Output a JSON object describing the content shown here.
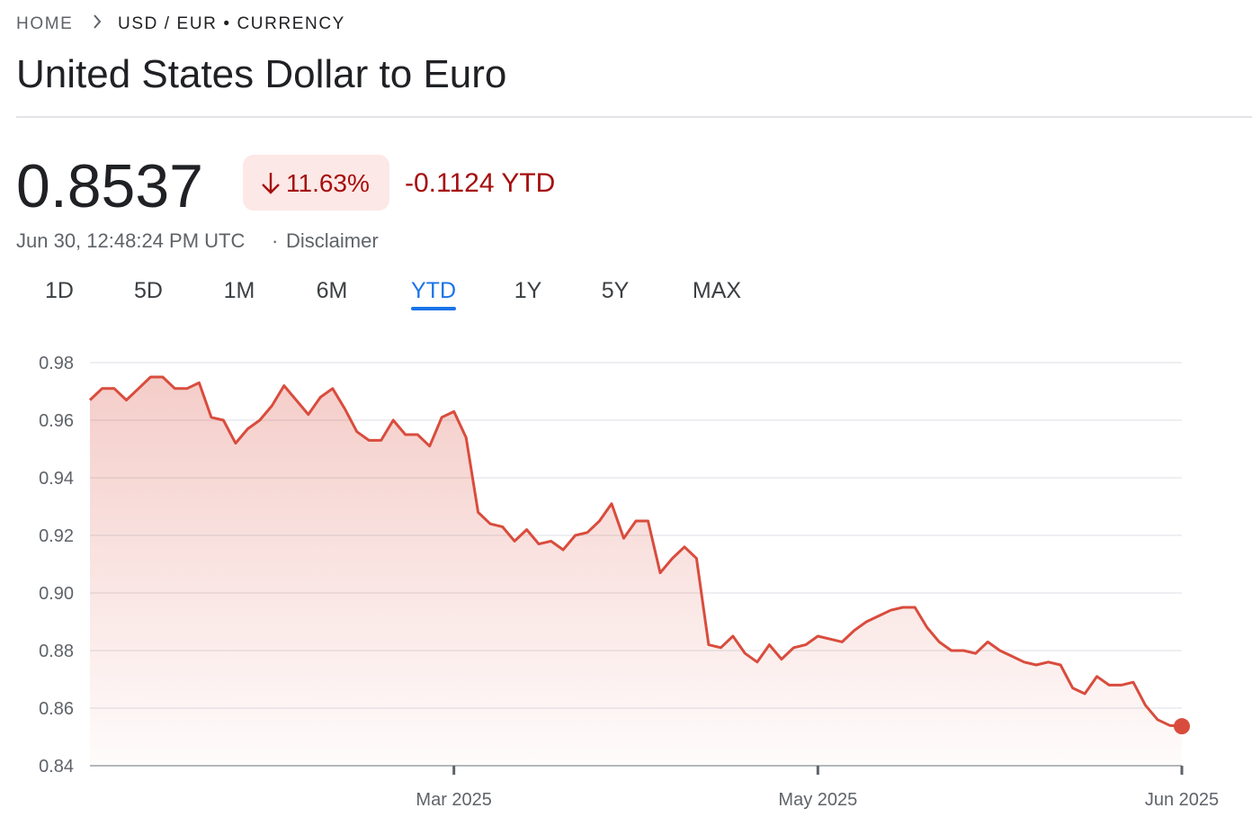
{
  "breadcrumb": {
    "home": "HOME",
    "current": "USD / EUR • CURRENCY"
  },
  "title": "United States Dollar to Euro",
  "quote": {
    "price": "0.8537",
    "change_percent": "11.63%",
    "change_absolute": "-0.1124 YTD",
    "timestamp": "Jun 30, 12:48:24 PM UTC",
    "separator": "·",
    "disclaimer": "Disclaimer"
  },
  "tabs": {
    "items": [
      "1D",
      "5D",
      "1M",
      "6M",
      "YTD",
      "1Y",
      "5Y",
      "MAX"
    ],
    "selected_index": 4
  },
  "chart_data": {
    "type": "area",
    "color": "#d94c3d",
    "grid": true,
    "categories": [
      null,
      null,
      null,
      null,
      null,
      null,
      null,
      null,
      null,
      null,
      null,
      null,
      null,
      null,
      null,
      null,
      null,
      null,
      null,
      null,
      null,
      null,
      null,
      null,
      null,
      null,
      null,
      null,
      null,
      null,
      "Mar 2025",
      null,
      null,
      null,
      null,
      null,
      null,
      null,
      null,
      null,
      null,
      null,
      null,
      null,
      null,
      null,
      null,
      null,
      null,
      null,
      null,
      null,
      null,
      null,
      null,
      null,
      null,
      null,
      null,
      null,
      "May 2025",
      null,
      null,
      null,
      null,
      null,
      null,
      null,
      null,
      null,
      null,
      null,
      null,
      null,
      null,
      null,
      null,
      null,
      null,
      null,
      null,
      null,
      null,
      null,
      null,
      null,
      null,
      null,
      null,
      null,
      "Jun 2025"
    ],
    "values": [
      0.967,
      0.971,
      0.971,
      0.967,
      0.971,
      0.975,
      0.975,
      0.971,
      0.971,
      0.973,
      0.961,
      0.96,
      0.952,
      0.957,
      0.96,
      0.965,
      0.972,
      0.967,
      0.962,
      0.968,
      0.971,
      0.964,
      0.956,
      0.953,
      0.953,
      0.96,
      0.955,
      0.955,
      0.951,
      0.961,
      0.963,
      0.954,
      0.928,
      0.924,
      0.923,
      0.918,
      0.922,
      0.917,
      0.918,
      0.915,
      0.92,
      0.921,
      0.925,
      0.931,
      0.919,
      0.925,
      0.925,
      0.907,
      0.912,
      0.916,
      0.912,
      0.882,
      0.881,
      0.885,
      0.879,
      0.876,
      0.882,
      0.877,
      0.881,
      0.882,
      0.885,
      0.884,
      0.883,
      0.887,
      0.89,
      0.892,
      0.894,
      0.895,
      0.895,
      0.888,
      0.883,
      0.88,
      0.88,
      0.879,
      0.883,
      0.88,
      0.878,
      0.876,
      0.875,
      0.876,
      0.875,
      0.867,
      0.865,
      0.871,
      0.868,
      0.868,
      0.869,
      0.861,
      0.856,
      0.854,
      0.8537
    ],
    "ylim": [
      0.84,
      0.98
    ],
    "yticks": [
      0.84,
      0.86,
      0.88,
      {
        "value": 0.9,
        "label": "0.90"
      },
      0.92,
      0.94,
      0.96,
      0.98
    ]
  }
}
